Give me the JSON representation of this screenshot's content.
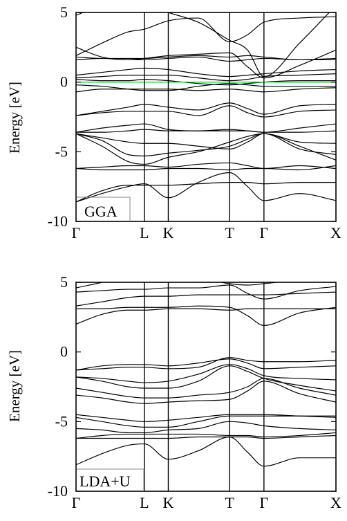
{
  "chart_data": [
    {
      "type": "line",
      "panel_label": "GGA",
      "ylabel": "Energy [eV]",
      "ylim": [
        -10,
        5
      ],
      "yticks": [
        5,
        0,
        -5,
        -10
      ],
      "kpoints": [
        {
          "label": "Γ",
          "x": 0.0
        },
        {
          "label": "L",
          "x": 0.263
        },
        {
          "label": "K",
          "x": 0.355
        },
        {
          "label": "T",
          "x": 0.591
        },
        {
          "label": "Γ",
          "x": 0.723
        },
        {
          "label": "X",
          "x": 1.0
        }
      ],
      "fermi_level": 0,
      "fermi_color": "#22cc22",
      "band_color": "#000000",
      "x": [
        0,
        0.1,
        0.2,
        0.263,
        0.355,
        0.47,
        0.591,
        0.66,
        0.723,
        0.86,
        1.0
      ],
      "series": [
        {
          "values": [
            -8.6,
            -8.0,
            -7.5,
            -7.3,
            -8.3,
            -7.2,
            -6.5,
            -7.5,
            -8.5,
            -8.0,
            -8.5
          ]
        },
        {
          "values": [
            -8.6,
            -7.8,
            -7.4,
            -7.4,
            -7.4,
            -7.3,
            -7.2,
            -7.2,
            -7.3,
            -7.2,
            -7.2
          ]
        },
        {
          "values": [
            -6.2,
            -6.3,
            -6.3,
            -6.3,
            -6.2,
            -6.2,
            -6.3,
            -6.2,
            -6.2,
            -6.3,
            -6.0
          ]
        },
        {
          "values": [
            -6.2,
            -6.1,
            -6.0,
            -6.0,
            -6.1,
            -5.9,
            -5.8,
            -6.0,
            -6.2,
            -6.0,
            -6.2
          ]
        },
        {
          "values": [
            -3.7,
            -4.6,
            -5.7,
            -5.9,
            -5.4,
            -5.0,
            -4.3,
            -3.9,
            -3.7,
            -4.8,
            -5.2
          ]
        },
        {
          "values": [
            -3.7,
            -4.2,
            -5.2,
            -5.3,
            -5.1,
            -4.9,
            -4.6,
            -4.1,
            -3.7,
            -4.6,
            -5.6
          ]
        },
        {
          "values": [
            -3.7,
            -4.0,
            -4.3,
            -4.4,
            -4.4,
            -4.6,
            -4.8,
            -4.3,
            -3.7,
            -4.3,
            -4.4
          ]
        },
        {
          "values": [
            -3.6,
            -3.6,
            -3.5,
            -3.4,
            -3.5,
            -3.5,
            -3.5,
            -3.5,
            -3.6,
            -3.6,
            -3.5
          ]
        },
        {
          "values": [
            -3.6,
            -3.3,
            -3.1,
            -3.0,
            -3.4,
            -3.5,
            -3.4,
            -3.5,
            -3.6,
            -3.3,
            -3.0
          ]
        },
        {
          "values": [
            -2.4,
            -2.2,
            -2.1,
            -2.1,
            -2.1,
            -2.4,
            -1.7,
            -2.2,
            -2.5,
            -2.1,
            -2.0
          ]
        },
        {
          "values": [
            -2.4,
            -2.1,
            -1.8,
            -1.6,
            -1.8,
            -2.0,
            -1.5,
            -1.9,
            -2.3,
            -1.7,
            -1.6
          ]
        },
        {
          "values": [
            -0.7,
            -0.5,
            -0.5,
            -0.5,
            -0.5,
            -0.6,
            -0.5,
            -0.6,
            -0.7,
            -0.5,
            -0.4
          ]
        },
        {
          "values": [
            -0.2,
            -0.3,
            -0.5,
            -0.6,
            -0.6,
            -0.3,
            -0.1,
            -0.2,
            -0.3,
            -0.3,
            -0.3
          ]
        },
        {
          "values": [
            0.2,
            0.1,
            0.1,
            0.2,
            0.1,
            -0.1,
            -0.2,
            -0.1,
            0.0,
            0.1,
            0.1
          ]
        },
        {
          "values": [
            0.3,
            0.4,
            0.5,
            0.5,
            0.5,
            0.3,
            0.1,
            0.2,
            0.4,
            0.5,
            0.6
          ]
        },
        {
          "values": [
            0.5,
            0.7,
            0.9,
            1.0,
            0.9,
            0.6,
            0.4,
            0.5,
            0.6,
            0.8,
            0.9
          ]
        },
        {
          "values": [
            1.6,
            1.7,
            1.6,
            1.6,
            1.7,
            1.8,
            1.5,
            1.6,
            1.7,
            1.6,
            1.7
          ]
        },
        {
          "values": [
            1.8,
            1.7,
            1.7,
            1.7,
            1.8,
            1.9,
            1.8,
            1.9,
            1.8,
            1.6,
            1.6
          ]
        },
        {
          "values": [
            2.5,
            1.8,
            1.6,
            1.7,
            1.9,
            2.0,
            2.1,
            1.1,
            0.3,
            1.2,
            2.3
          ]
        },
        {
          "values": [
            1.9,
            2.8,
            3.6,
            3.8,
            4.4,
            4.6,
            2.9,
            3.4,
            4.3,
            4.6,
            4.7
          ]
        },
        {
          "values": [
            4.8,
            5.5,
            5.8,
            5.6,
            5.0,
            4.3,
            3.0,
            2.3,
            0.4,
            2.8,
            5.5
          ]
        }
      ]
    },
    {
      "type": "line",
      "panel_label": "LDA+U",
      "ylabel": "Energy [eV]",
      "ylim": [
        -10,
        5
      ],
      "yticks": [
        5,
        0,
        -5,
        -10
      ],
      "kpoints": [
        {
          "label": "Γ",
          "x": 0.0
        },
        {
          "label": "L",
          "x": 0.263
        },
        {
          "label": "K",
          "x": 0.355
        },
        {
          "label": "T",
          "x": 0.591
        },
        {
          "label": "Γ",
          "x": 0.723
        },
        {
          "label": "X",
          "x": 1.0
        }
      ],
      "band_color": "#000000",
      "x": [
        0,
        0.1,
        0.2,
        0.263,
        0.355,
        0.47,
        0.591,
        0.66,
        0.723,
        0.86,
        1.0
      ],
      "series": [
        {
          "values": [
            -8.1,
            -7.3,
            -6.7,
            -6.6,
            -7.7,
            -7.1,
            -6.1,
            -7.2,
            -8.2,
            -7.6,
            -7.6
          ]
        },
        {
          "values": [
            -6.2,
            -6.2,
            -6.2,
            -6.2,
            -6.2,
            -6.1,
            -6.1,
            -6.1,
            -6.2,
            -6.1,
            -6.0
          ]
        },
        {
          "values": [
            -6.2,
            -6.0,
            -5.9,
            -5.9,
            -5.9,
            -5.9,
            -6.0,
            -6.0,
            -6.1,
            -6.0,
            -5.8
          ]
        },
        {
          "values": [
            -5.5,
            -5.6,
            -5.8,
            -5.8,
            -5.6,
            -5.5,
            -5.0,
            -5.1,
            -5.3,
            -5.5,
            -5.6
          ]
        },
        {
          "values": [
            -4.7,
            -5.0,
            -5.3,
            -5.4,
            -5.4,
            -5.0,
            -4.6,
            -4.6,
            -4.6,
            -4.6,
            -4.6
          ]
        },
        {
          "values": [
            -4.5,
            -4.7,
            -4.9,
            -5.0,
            -4.9,
            -4.7,
            -4.5,
            -4.5,
            -4.5,
            -4.6,
            -4.7
          ]
        },
        {
          "values": [
            -3.1,
            -3.3,
            -3.6,
            -3.7,
            -3.6,
            -3.5,
            -3.4,
            -2.8,
            -2.1,
            -3.0,
            -3.6
          ]
        },
        {
          "values": [
            -2.6,
            -2.9,
            -3.2,
            -3.3,
            -3.3,
            -3.1,
            -2.9,
            -2.5,
            -1.9,
            -2.6,
            -3.1
          ]
        },
        {
          "values": [
            -1.8,
            -2.1,
            -2.5,
            -2.6,
            -2.6,
            -2.1,
            -1.0,
            -1.4,
            -1.9,
            -2.4,
            -2.8
          ]
        },
        {
          "values": [
            -1.8,
            -1.9,
            -2.1,
            -2.2,
            -2.1,
            -1.6,
            -0.9,
            -1.2,
            -1.7,
            -1.9,
            -2.0
          ]
        },
        {
          "values": [
            -1.3,
            -1.0,
            -0.9,
            -0.9,
            -1.0,
            -0.8,
            -0.5,
            -0.8,
            -1.2,
            -1.1,
            -1.0
          ]
        },
        {
          "values": [
            -1.3,
            -1.2,
            -1.1,
            -1.1,
            -1.2,
            -1.1,
            -0.4,
            -0.6,
            -0.7,
            -0.7,
            -0.6
          ]
        },
        {
          "values": [
            2.0,
            2.7,
            3.0,
            3.0,
            3.1,
            3.1,
            3.0,
            3.1,
            3.1,
            3.1,
            3.1
          ]
        },
        {
          "values": [
            3.1,
            3.1,
            3.2,
            3.2,
            3.2,
            3.3,
            3.2,
            2.6,
            1.9,
            2.8,
            3.2
          ]
        },
        {
          "values": [
            3.3,
            3.6,
            3.9,
            4.0,
            4.0,
            4.1,
            4.1,
            4.1,
            4.1,
            4.2,
            4.3
          ]
        },
        {
          "values": [
            4.3,
            4.4,
            4.5,
            4.5,
            4.6,
            4.6,
            4.8,
            4.2,
            3.8,
            4.4,
            4.7
          ]
        },
        {
          "values": [
            4.6,
            5.0,
            5.5,
            5.6,
            5.4,
            5.3,
            4.9,
            4.8,
            4.9,
            5.2,
            5.4
          ]
        }
      ]
    }
  ]
}
